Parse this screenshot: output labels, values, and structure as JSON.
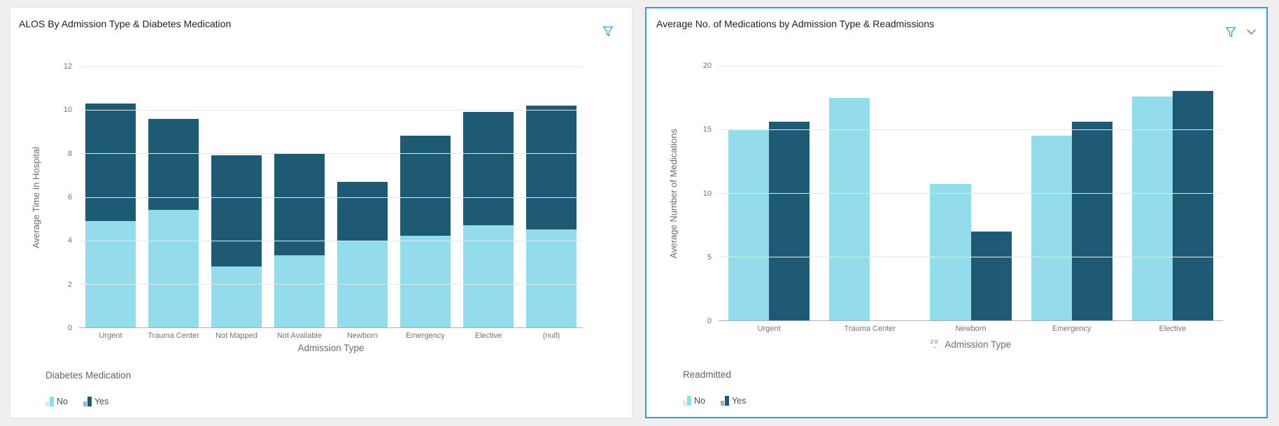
{
  "page": {
    "background": "#efefef"
  },
  "accent_color": "#2aa0d8",
  "left_panel": {
    "selected": false,
    "icons": [
      "filter-funnel"
    ]
  },
  "right_panel": {
    "selected": true,
    "icons": [
      "filter-funnel",
      "chevron-down"
    ],
    "sort_icon_text": "za",
    "sort_icon_arrow": "→"
  },
  "chart_data": [
    {
      "type": "bar",
      "variant": "stacked",
      "title": "ALOS By Admission Type & Diabetes Medication",
      "xlabel": "Admission Type",
      "ylabel": "Average Time In Hospital",
      "ylim": [
        0,
        12
      ],
      "yticks": [
        0,
        2,
        4,
        6,
        8,
        10,
        12
      ],
      "grid": true,
      "legend_position": "bottom-left",
      "legend_title": "Diabetes Medication",
      "categories": [
        "Urgent",
        "Trauma Center",
        "Not Mapped",
        "Not Available",
        "Newborn",
        "Emergency",
        "Elective",
        "(null)"
      ],
      "series": [
        {
          "name": "No",
          "color": "#92dcec",
          "values": [
            4.9,
            5.4,
            2.8,
            3.3,
            4.0,
            4.2,
            4.7,
            4.5
          ]
        },
        {
          "name": "Yes",
          "color": "#1e5a73",
          "values": [
            5.4,
            4.2,
            5.1,
            4.7,
            2.7,
            4.6,
            5.2,
            5.7
          ]
        }
      ],
      "stack_totals": [
        10.3,
        9.6,
        7.9,
        8.0,
        6.7,
        8.8,
        9.9,
        10.2
      ]
    },
    {
      "type": "bar",
      "variant": "grouped",
      "title": "Average No. of Medications by Admission Type & Readmissions",
      "xlabel": "Admission Type",
      "ylabel": "Average Number of Medications",
      "ylim": [
        0,
        20
      ],
      "yticks": [
        0,
        5,
        10,
        15,
        20
      ],
      "grid": true,
      "legend_position": "bottom-left",
      "legend_title": "Readmitted",
      "categories": [
        "Urgent",
        "Trauma Center",
        "Newborn",
        "Emergency",
        "Elective"
      ],
      "series": [
        {
          "name": "No",
          "color": "#92dcec",
          "values": [
            15.0,
            17.5,
            10.7,
            14.5,
            17.6
          ]
        },
        {
          "name": "Yes",
          "color": "#1e5a73",
          "values": [
            15.6,
            null,
            7.0,
            15.6,
            18.0
          ]
        }
      ]
    }
  ]
}
